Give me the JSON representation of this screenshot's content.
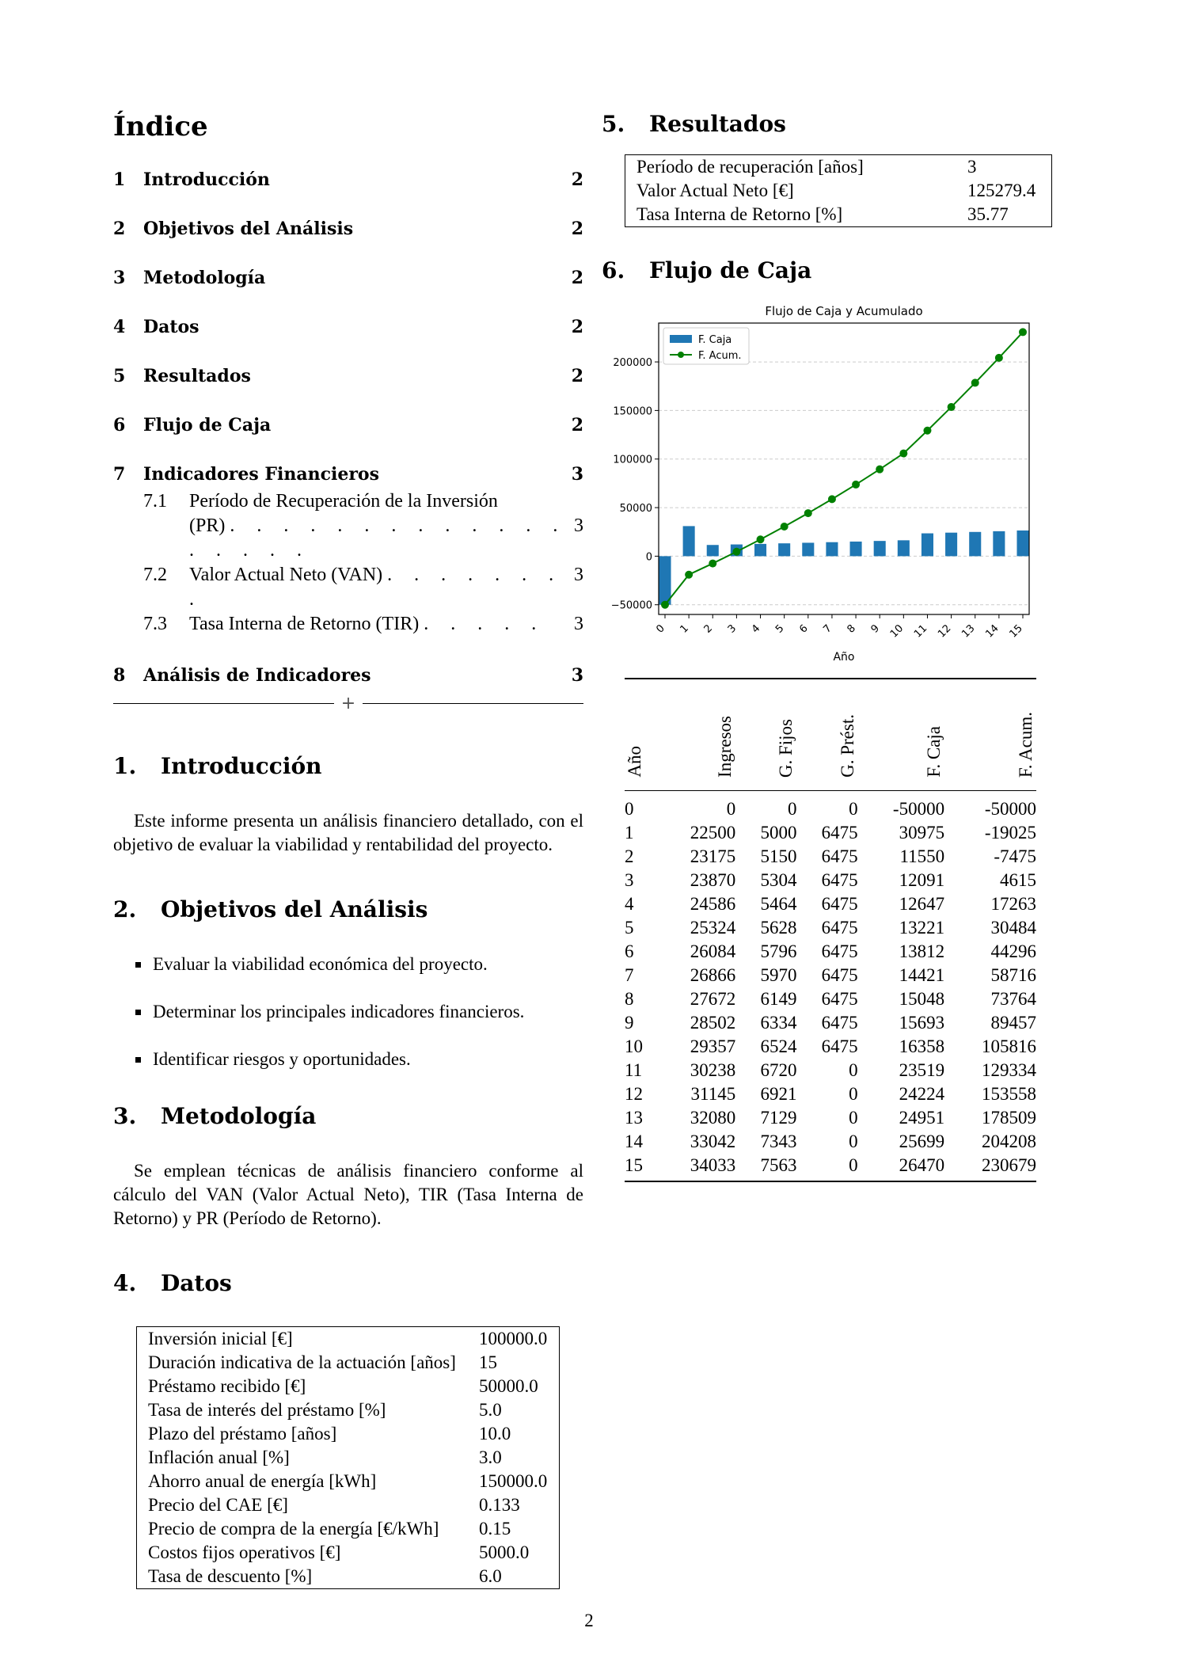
{
  "toc": {
    "title": "Índice",
    "entries": [
      {
        "num": "1",
        "label": "Introducción",
        "page": "2"
      },
      {
        "num": "2",
        "label": "Objetivos del Análisis",
        "page": "2"
      },
      {
        "num": "3",
        "label": "Metodología",
        "page": "2"
      },
      {
        "num": "4",
        "label": "Datos",
        "page": "2"
      },
      {
        "num": "5",
        "label": "Resultados",
        "page": "2"
      },
      {
        "num": "6",
        "label": "Flujo de Caja",
        "page": "2"
      },
      {
        "num": "7",
        "label": "Indicadores Financieros",
        "page": "3"
      },
      {
        "num": "8",
        "label": "Análisis de Indicadores",
        "page": "3"
      }
    ],
    "subentries": [
      {
        "num": "7.1",
        "label": "Período de Recuperación de la Inversión",
        "label2": "(PR)",
        "page": "3"
      },
      {
        "num": "7.2",
        "label": "Valor Actual Neto (VAN)",
        "page": "3"
      },
      {
        "num": "7.3",
        "label": "Tasa Interna de Retorno (TIR)",
        "page": "3"
      }
    ]
  },
  "sections": {
    "intro": {
      "num": "1.",
      "title": "Introducción",
      "text": "Este informe presenta un análisis financiero detallado, con el objetivo de evaluar la viabilidad y rentabilidad del proyecto."
    },
    "objetivos": {
      "num": "2.",
      "title": "Objetivos del Análisis",
      "bullets": [
        "Evaluar la viabilidad económica del proyecto.",
        "Determinar los principales indicadores financieros.",
        "Identificar riesgos y oportunidades."
      ]
    },
    "metodologia": {
      "num": "3.",
      "title": "Metodología",
      "text": "Se emplean técnicas de análisis financiero conforme al cálculo del VAN (Valor Actual Neto), TIR (Tasa Interna de Retorno) y PR (Período de Retorno)."
    },
    "datos": {
      "num": "4.",
      "title": "Datos",
      "rows": [
        [
          "Inversión inicial [€]",
          "100000.0"
        ],
        [
          "Duración indicativa de la actuación [años]",
          "15"
        ],
        [
          "Préstamo recibido [€]",
          "50000.0"
        ],
        [
          "Tasa de interés del préstamo [%]",
          "5.0"
        ],
        [
          "Plazo del préstamo [años]",
          "10.0"
        ],
        [
          "Inflación anual [%]",
          "3.0"
        ],
        [
          "Ahorro anual de energía [kWh]",
          "150000.0"
        ],
        [
          "Precio del CAE [€]",
          "0.133"
        ],
        [
          "Precio de compra de la energía [€/kWh]",
          "0.15"
        ],
        [
          "Costos fijos operativos [€]",
          "5000.0"
        ],
        [
          "Tasa de descuento [%]",
          "6.0"
        ]
      ]
    },
    "resultados": {
      "num": "5.",
      "title": "Resultados",
      "rows": [
        [
          "Período de recuperación [años]",
          "3"
        ],
        [
          "Valor Actual Neto [€]",
          "125279.4"
        ],
        [
          "Tasa Interna de Retorno [%]",
          "35.77"
        ]
      ]
    },
    "flujo": {
      "num": "6.",
      "title": "Flujo de Caja"
    }
  },
  "chart_data": {
    "type": "bar",
    "title": "Flujo de Caja y Acumulado",
    "xlabel": "Año",
    "ylabel": "",
    "x": [
      0,
      1,
      2,
      3,
      4,
      5,
      6,
      7,
      8,
      9,
      10,
      11,
      12,
      13,
      14,
      15
    ],
    "ylim": [
      -60000,
      240000
    ],
    "yticks": [
      -50000,
      0,
      50000,
      100000,
      150000,
      200000
    ],
    "grid": "y-dashed",
    "legend": "top-left",
    "series": [
      {
        "name": "F. Caja",
        "type": "bar",
        "color": "#1f77b4",
        "values": [
          -50000,
          30975,
          11550,
          12091,
          12647,
          13221,
          13812,
          14421,
          15048,
          15693,
          16358,
          23519,
          24224,
          24951,
          25699,
          26470
        ]
      },
      {
        "name": "F. Acum.",
        "type": "line",
        "color": "#008000",
        "values": [
          -50000,
          -19025,
          -7475,
          4615,
          17263,
          30484,
          44296,
          58716,
          73764,
          89457,
          105816,
          129334,
          153558,
          178509,
          204208,
          230679
        ]
      }
    ]
  },
  "cashflow_table": {
    "headers": [
      "Año",
      "Ingresos",
      "G. Fijos",
      "G. Prést.",
      "F. Caja",
      "F. Acum."
    ],
    "rows": [
      [
        "0",
        "0",
        "0",
        "0",
        "-50000",
        "-50000"
      ],
      [
        "1",
        "22500",
        "5000",
        "6475",
        "30975",
        "-19025"
      ],
      [
        "2",
        "23175",
        "5150",
        "6475",
        "11550",
        "-7475"
      ],
      [
        "3",
        "23870",
        "5304",
        "6475",
        "12091",
        "4615"
      ],
      [
        "4",
        "24586",
        "5464",
        "6475",
        "12647",
        "17263"
      ],
      [
        "5",
        "25324",
        "5628",
        "6475",
        "13221",
        "30484"
      ],
      [
        "6",
        "26084",
        "5796",
        "6475",
        "13812",
        "44296"
      ],
      [
        "7",
        "26866",
        "5970",
        "6475",
        "14421",
        "58716"
      ],
      [
        "8",
        "27672",
        "6149",
        "6475",
        "15048",
        "73764"
      ],
      [
        "9",
        "28502",
        "6334",
        "6475",
        "15693",
        "89457"
      ],
      [
        "10",
        "29357",
        "6524",
        "6475",
        "16358",
        "105816"
      ],
      [
        "11",
        "30238",
        "6720",
        "0",
        "23519",
        "129334"
      ],
      [
        "12",
        "31145",
        "6921",
        "0",
        "24224",
        "153558"
      ],
      [
        "13",
        "32080",
        "7129",
        "0",
        "24951",
        "178509"
      ],
      [
        "14",
        "33042",
        "7343",
        "0",
        "25699",
        "204208"
      ],
      [
        "15",
        "34033",
        "7563",
        "0",
        "26470",
        "230679"
      ]
    ]
  },
  "page_number": "2"
}
